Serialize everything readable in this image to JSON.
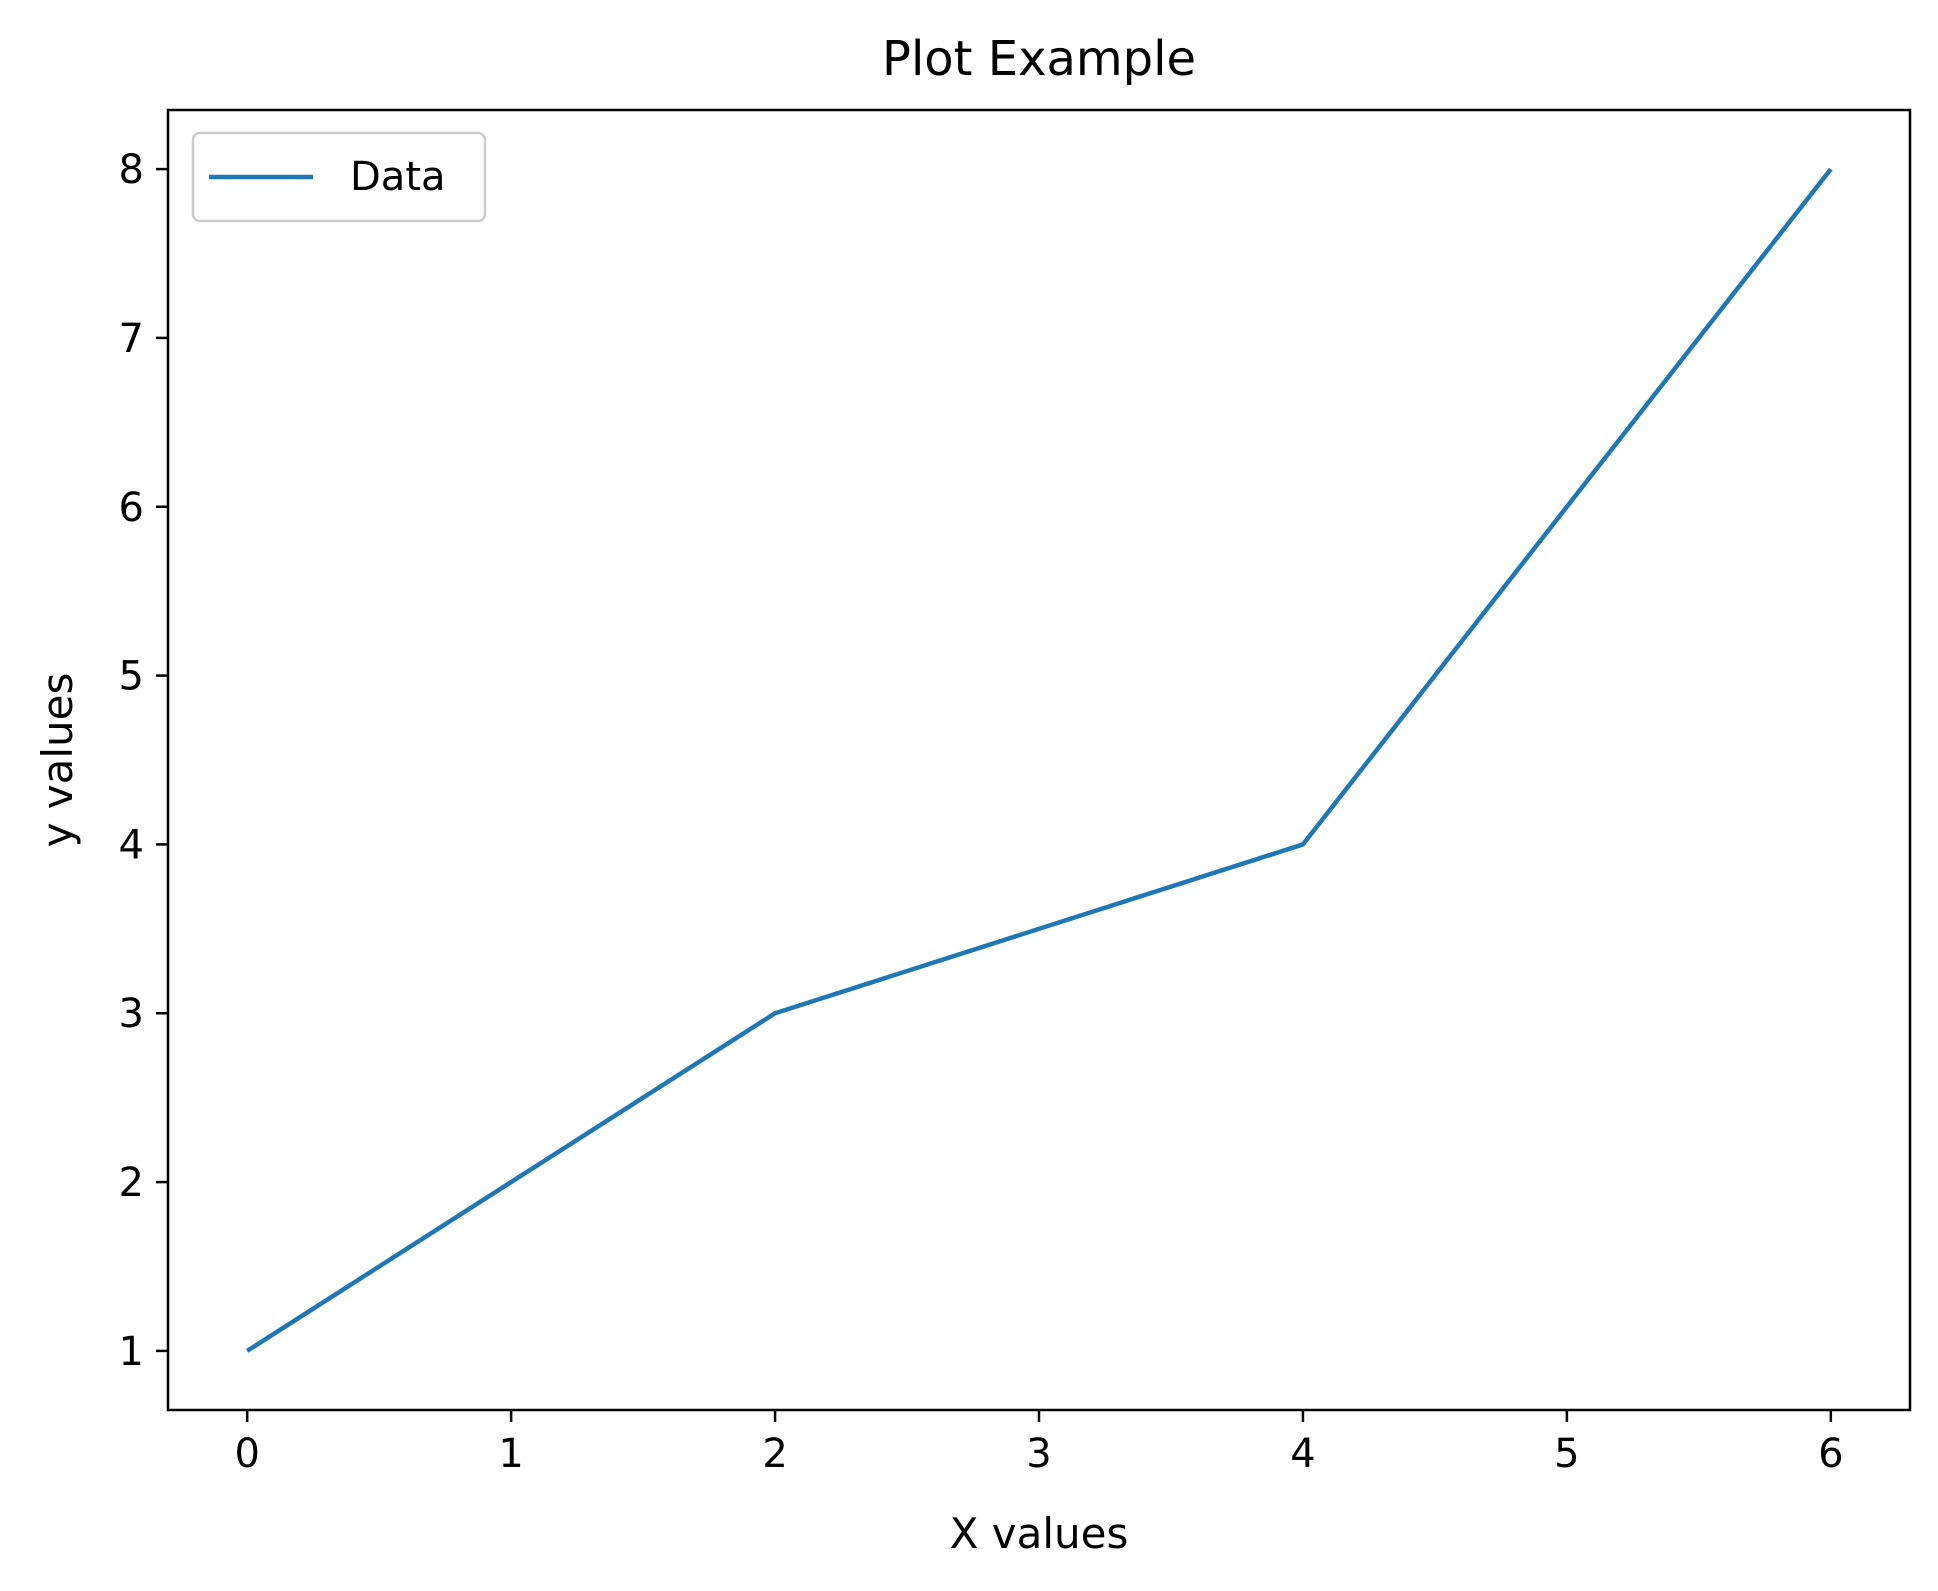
{
  "chart_data": {
    "type": "line",
    "title": "Plot Example",
    "xlabel": "X values",
    "ylabel": "y values",
    "xlim": [
      -0.3,
      6.3
    ],
    "ylim": [
      0.65,
      8.35
    ],
    "xticks": [
      0,
      1,
      2,
      3,
      4,
      5,
      6
    ],
    "xtick_labels": [
      "0",
      "1",
      "2",
      "3",
      "4",
      "5",
      "6"
    ],
    "yticks": [
      1,
      2,
      3,
      4,
      5,
      6,
      7,
      8
    ],
    "ytick_labels": [
      "1",
      "2",
      "3",
      "4",
      "5",
      "6",
      "7",
      "8"
    ],
    "grid": false,
    "legend_position": "upper-left",
    "series": [
      {
        "name": "Data",
        "color": "#1f77b4",
        "x": [
          0,
          2,
          4,
          6
        ],
        "y": [
          1,
          3,
          4,
          8
        ]
      }
    ]
  }
}
